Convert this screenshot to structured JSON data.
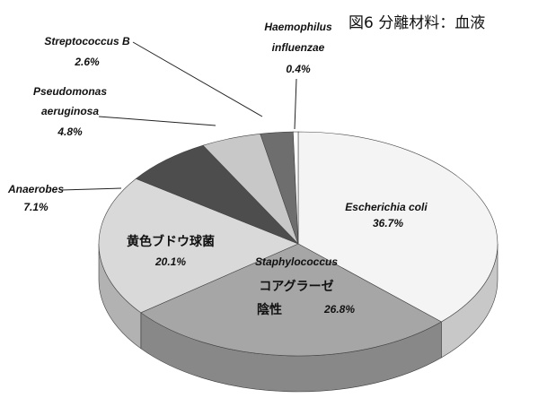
{
  "chart_data": {
    "type": "pie3d",
    "title": "図6 分離材料：血液",
    "categories": [
      [
        "Escherichia coli"
      ],
      [
        "Staphylococcus",
        "コアグラーゼ",
        "陰性"
      ],
      [
        "黄色ブドウ球菌"
      ],
      [
        "Anaerobes"
      ],
      [
        "Pseudomonas",
        "aeruginosa"
      ],
      [
        "Streptococcus B"
      ],
      [
        "Haemophilus",
        "influenzae"
      ]
    ],
    "values": [
      36.7,
      26.8,
      20.1,
      7.1,
      4.8,
      2.6,
      0.4
    ],
    "value_labels": [
      "36.7%",
      "26.8%",
      "20.1%",
      "7.1%",
      "4.8%",
      "2.6%",
      "0.4%"
    ],
    "colors": [
      "#f4f4f4",
      "#a6a6a6",
      "#d9d9d9",
      "#4d4d4d",
      "#c8c8c8",
      "#6e6e6e",
      "#ffffff"
    ]
  }
}
